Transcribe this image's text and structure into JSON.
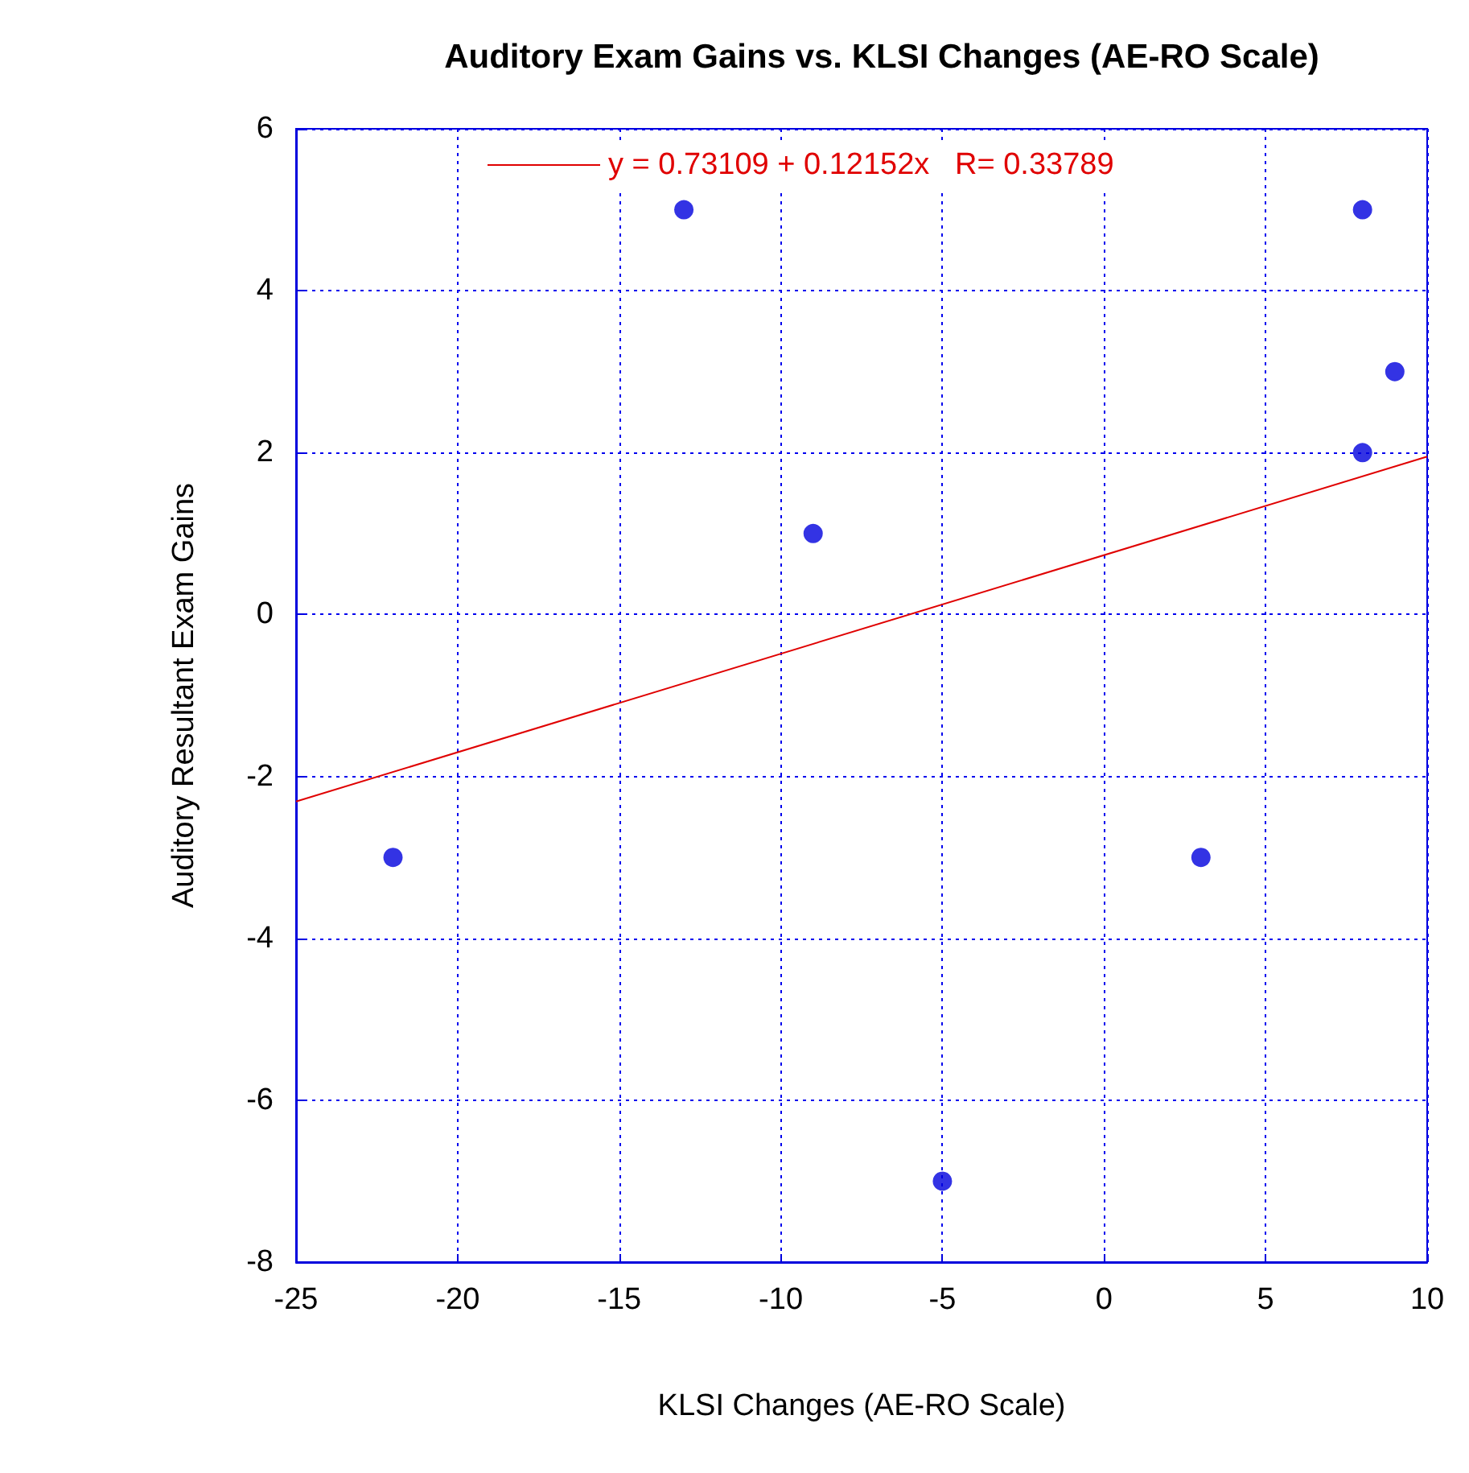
{
  "chart_data": {
    "type": "scatter",
    "title": "Auditory Exam Gains vs. KLSI Changes (AE-RO Scale)",
    "xlabel": "KLSI Changes (AE-RO Scale)",
    "ylabel": "Auditory Resultant Exam Gains",
    "xlim": [
      -25,
      10
    ],
    "xticks": [
      -25,
      -20,
      -15,
      -10,
      -5,
      0,
      5,
      10
    ],
    "ylim": [
      -8,
      6
    ],
    "yticks": [
      -8,
      -6,
      -4,
      -2,
      0,
      2,
      4,
      6
    ],
    "grid": true,
    "legend": "top",
    "series": [
      {
        "color": "#0000dd",
        "marker": "circle",
        "x": [
          -22,
          -13,
          -9,
          -5,
          3,
          8,
          8,
          9
        ],
        "values": [
          -3,
          5,
          1,
          -7,
          -3,
          5,
          2,
          3
        ]
      },
      {
        "type": "line",
        "name": "y = 0.73109 + 0.12152x   R= 0.33789",
        "color": "#e00000",
        "marker": "none",
        "x": [
          -25,
          10
        ],
        "values": [
          -2.31,
          1.95
        ]
      }
    ]
  }
}
